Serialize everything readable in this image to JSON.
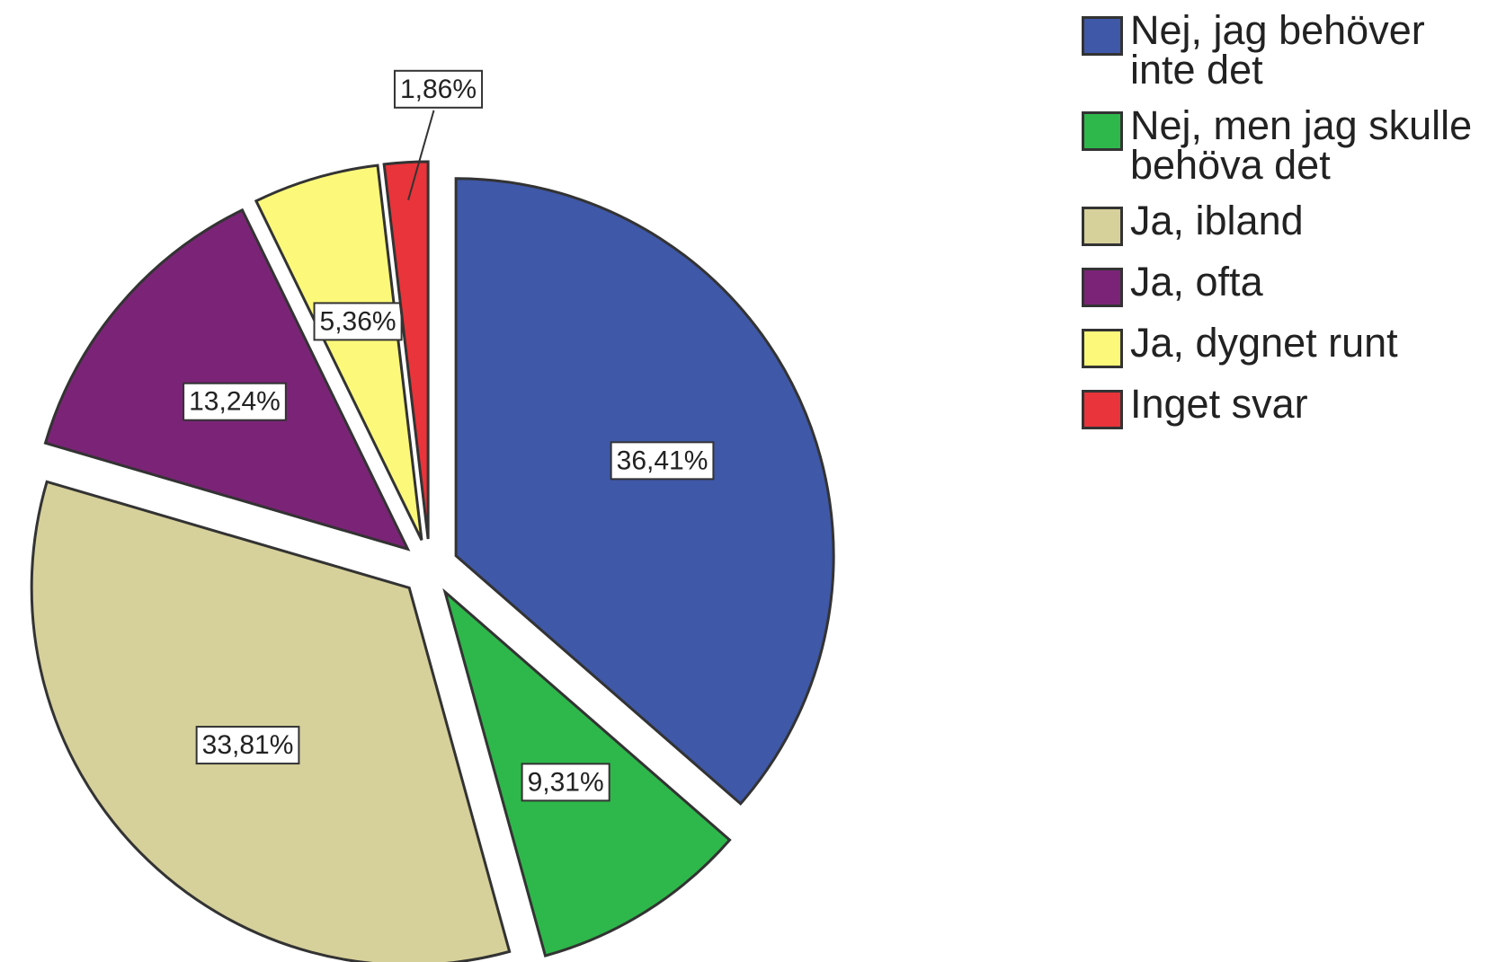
{
  "chart_data": {
    "type": "pie",
    "series": [
      {
        "name": "Nej, jag behöver inte det",
        "color": "#3f58a8"
      },
      {
        "name": "Nej, men jag skulle behöva det",
        "color": "#2eb84b"
      },
      {
        "name": "Ja, ibland",
        "color": "#d6d09a"
      },
      {
        "name": "Ja, ofta",
        "color": "#7b2477"
      },
      {
        "name": "Ja, dygnet runt",
        "color": "#fcf97a"
      },
      {
        "name": "Inget svar",
        "color": "#e8343a"
      }
    ],
    "values": [
      36.41,
      9.31,
      33.81,
      13.24,
      5.36,
      1.86
    ],
    "value_labels": [
      "36,41%",
      "9,31%",
      "33,81%",
      "13,24%",
      "5,36%",
      "1,86%"
    ],
    "legend": "top-right"
  }
}
